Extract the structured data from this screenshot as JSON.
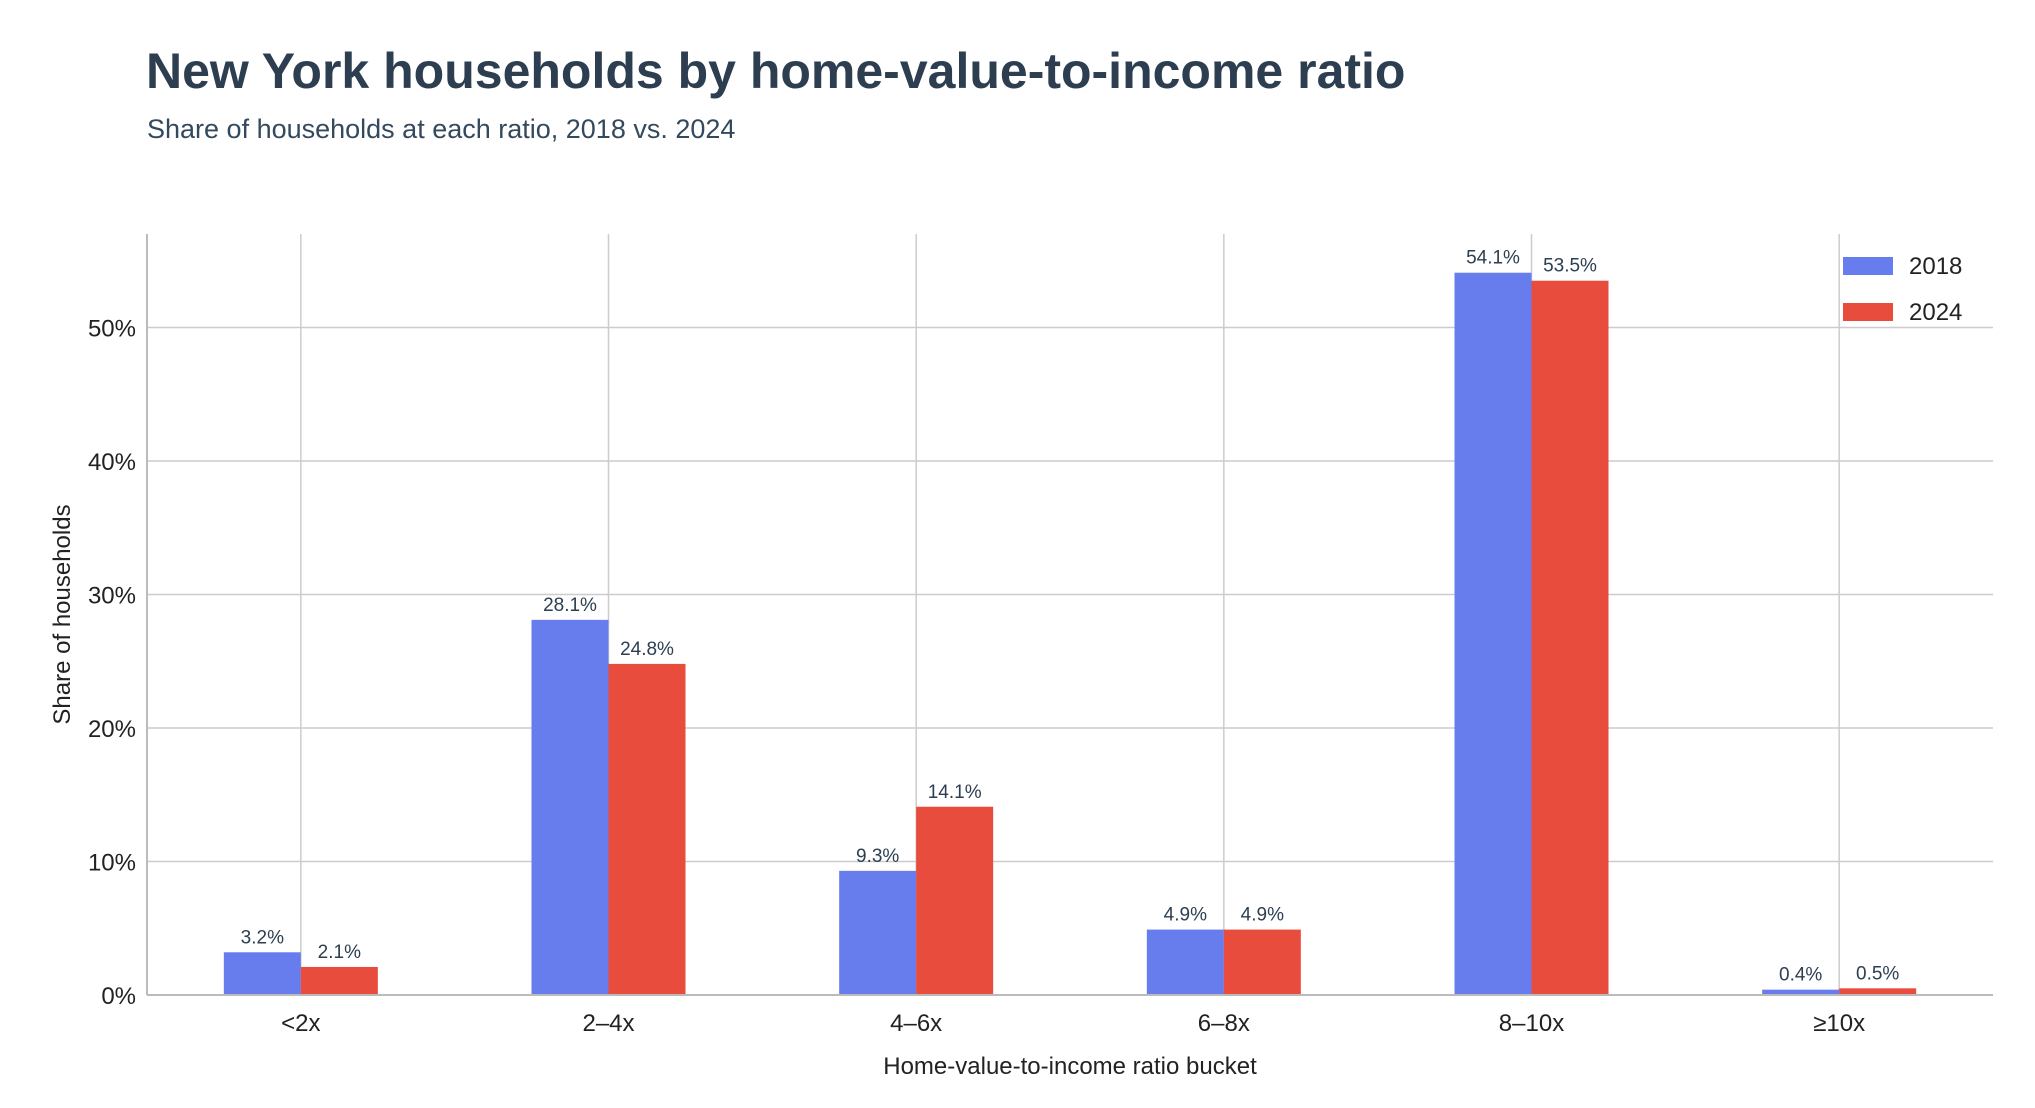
{
  "title": "New York households by home-value-to-income ratio",
  "subtitle": "Share of households at each ratio, 2018 vs. 2024",
  "colors": {
    "series_2018": "#687ded",
    "series_2024": "#e74c3c",
    "grid": "#cccccc",
    "axis": "#bbbbbb",
    "text": "#222222",
    "label_text": "#2c3e50"
  },
  "chart_data": {
    "type": "bar",
    "categories": [
      "<2x",
      "2–4x",
      "4–6x",
      "6–8x",
      "8–10x",
      "≥10x"
    ],
    "series": [
      {
        "name": "2018",
        "values": [
          3.2,
          28.1,
          9.3,
          4.9,
          54.1,
          0.4
        ],
        "labels": [
          "3.2%",
          "28.1%",
          "9.3%",
          "4.9%",
          "54.1%",
          "0.4%"
        ]
      },
      {
        "name": "2024",
        "values": [
          2.1,
          24.8,
          14.1,
          4.9,
          53.5,
          0.5
        ],
        "labels": [
          "2.1%",
          "24.8%",
          "14.1%",
          "4.9%",
          "53.5%",
          "0.5%"
        ]
      }
    ],
    "xlabel": "Home-value-to-income ratio bucket",
    "ylabel": "Share of households",
    "ylim": [
      0,
      57
    ],
    "yticks": [
      0,
      10,
      20,
      30,
      40,
      50
    ],
    "ytick_labels": [
      "0%",
      "10%",
      "20%",
      "30%",
      "40%",
      "50%"
    ],
    "grid": true,
    "legend": "top-right"
  }
}
